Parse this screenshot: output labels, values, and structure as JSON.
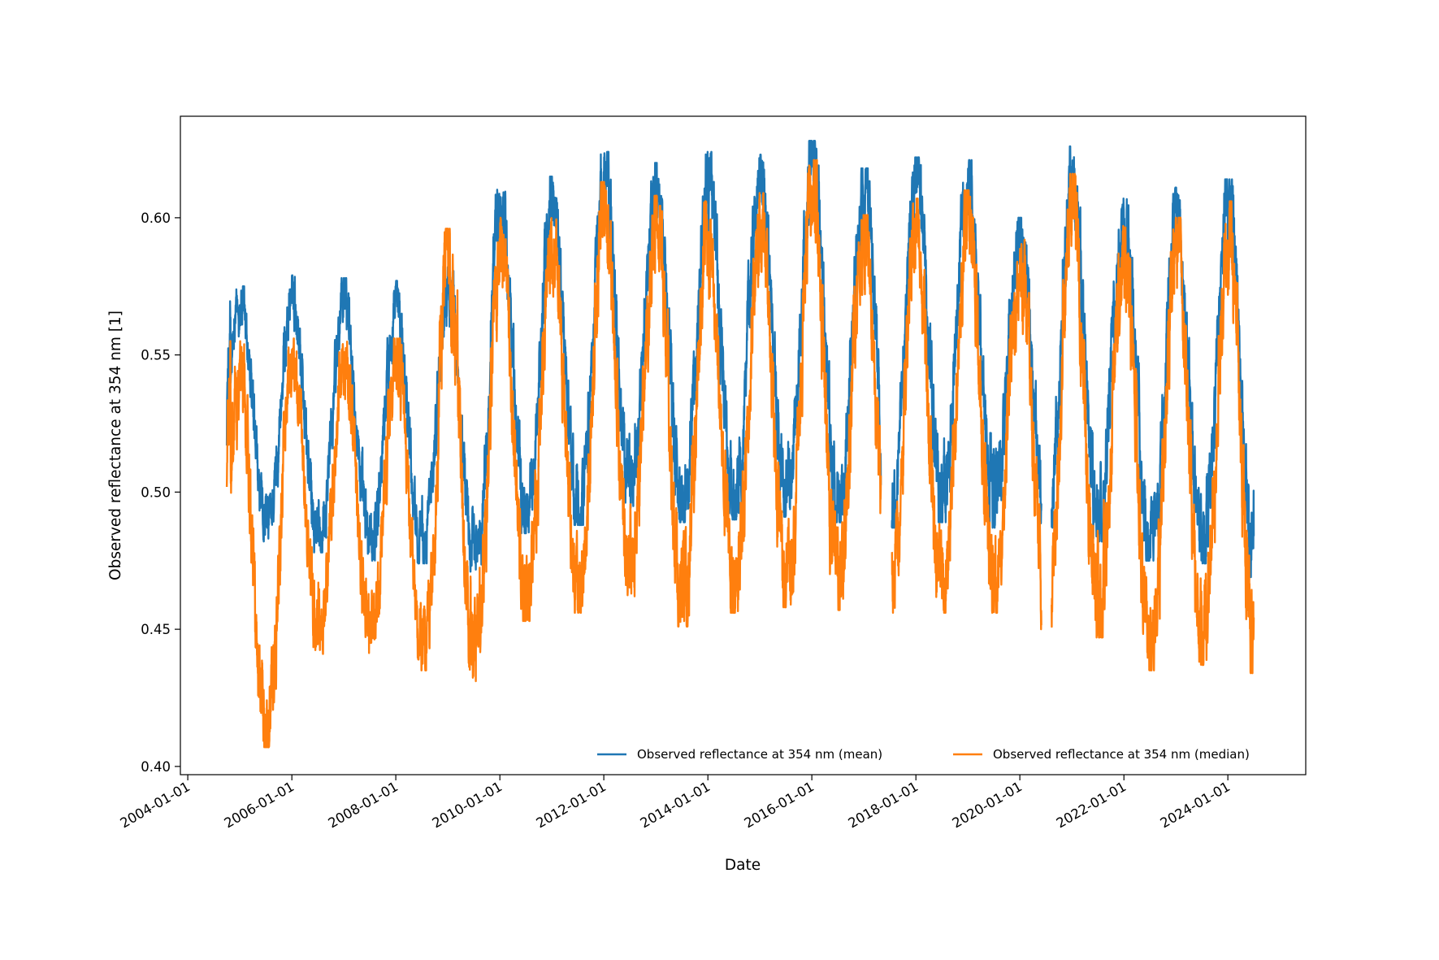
{
  "chart_data": {
    "type": "line",
    "title": "",
    "xlabel": "Date",
    "ylabel": "Observed reflectance at 354 nm [1]",
    "x_type": "date",
    "xlim": [
      "2003-11-10",
      "2025-07-01"
    ],
    "ylim": [
      0.397,
      0.637
    ],
    "x_ticks": [
      "2004-01-01",
      "2006-01-01",
      "2008-01-01",
      "2010-01-01",
      "2012-01-01",
      "2014-01-01",
      "2016-01-01",
      "2018-01-01",
      "2020-01-01",
      "2022-01-01",
      "2024-01-01"
    ],
    "y_ticks": [
      0.4,
      0.45,
      0.5,
      0.55,
      0.6
    ],
    "y_tick_labels": [
      "0.40",
      "0.45",
      "0.50",
      "0.55",
      "0.60"
    ],
    "grid": false,
    "legend_position": "lower-right",
    "legend_columns": 2,
    "x_start": "2004-10-01",
    "x_end": "2024-07-01",
    "gaps": [
      [
        "2017-05-01",
        "2017-07-15"
      ],
      [
        "2020-06-01",
        "2020-08-10"
      ]
    ],
    "series": [
      {
        "name": "Observed reflectance at 354 nm (mean)",
        "color": "#1f77b4",
        "seasonal_range": [
          {
            "year": 2005,
            "max": 0.575,
            "min": 0.482
          },
          {
            "year": 2006,
            "max": 0.579,
            "min": 0.478
          },
          {
            "year": 2007,
            "max": 0.578,
            "min": 0.475
          },
          {
            "year": 2008,
            "max": 0.577,
            "min": 0.474
          },
          {
            "year": 2009,
            "max": 0.582,
            "min": 0.471
          },
          {
            "year": 2010,
            "max": 0.612,
            "min": 0.485
          },
          {
            "year": 2011,
            "max": 0.615,
            "min": 0.488
          },
          {
            "year": 2012,
            "max": 0.624,
            "min": 0.492
          },
          {
            "year": 2013,
            "max": 0.62,
            "min": 0.489
          },
          {
            "year": 2014,
            "max": 0.624,
            "min": 0.49
          },
          {
            "year": 2015,
            "max": 0.623,
            "min": 0.491
          },
          {
            "year": 2016,
            "max": 0.628,
            "min": 0.489
          },
          {
            "year": 2017,
            "max": 0.618,
            "min": 0.487
          },
          {
            "year": 2018,
            "max": 0.622,
            "min": 0.489
          },
          {
            "year": 2019,
            "max": 0.621,
            "min": 0.487
          },
          {
            "year": 2020,
            "max": 0.6,
            "min": 0.484
          },
          {
            "year": 2021,
            "max": 0.626,
            "min": 0.482
          },
          {
            "year": 2022,
            "max": 0.607,
            "min": 0.475
          },
          {
            "year": 2023,
            "max": 0.611,
            "min": 0.474
          },
          {
            "year": 2024,
            "max": 0.614,
            "min": 0.469
          }
        ]
      },
      {
        "name": "Observed reflectance at 354 nm (median)",
        "color": "#ff7f0e",
        "seasonal_range": [
          {
            "year": 2005,
            "max": 0.555,
            "min": 0.407
          },
          {
            "year": 2006,
            "max": 0.556,
            "min": 0.441
          },
          {
            "year": 2007,
            "max": 0.557,
            "min": 0.439
          },
          {
            "year": 2008,
            "max": 0.556,
            "min": 0.435
          },
          {
            "year": 2009,
            "max": 0.596,
            "min": 0.431
          },
          {
            "year": 2010,
            "max": 0.6,
            "min": 0.453
          },
          {
            "year": 2011,
            "max": 0.604,
            "min": 0.456
          },
          {
            "year": 2012,
            "max": 0.613,
            "min": 0.462
          },
          {
            "year": 2013,
            "max": 0.608,
            "min": 0.451
          },
          {
            "year": 2014,
            "max": 0.606,
            "min": 0.456
          },
          {
            "year": 2015,
            "max": 0.609,
            "min": 0.458
          },
          {
            "year": 2016,
            "max": 0.621,
            "min": 0.457
          },
          {
            "year": 2017,
            "max": 0.601,
            "min": 0.456
          },
          {
            "year": 2018,
            "max": 0.607,
            "min": 0.456
          },
          {
            "year": 2019,
            "max": 0.61,
            "min": 0.456
          },
          {
            "year": 2020,
            "max": 0.592,
            "min": 0.45
          },
          {
            "year": 2021,
            "max": 0.616,
            "min": 0.447
          },
          {
            "year": 2022,
            "max": 0.597,
            "min": 0.435
          },
          {
            "year": 2023,
            "max": 0.6,
            "min": 0.437
          },
          {
            "year": 2024,
            "max": 0.606,
            "min": 0.434
          }
        ]
      }
    ]
  }
}
